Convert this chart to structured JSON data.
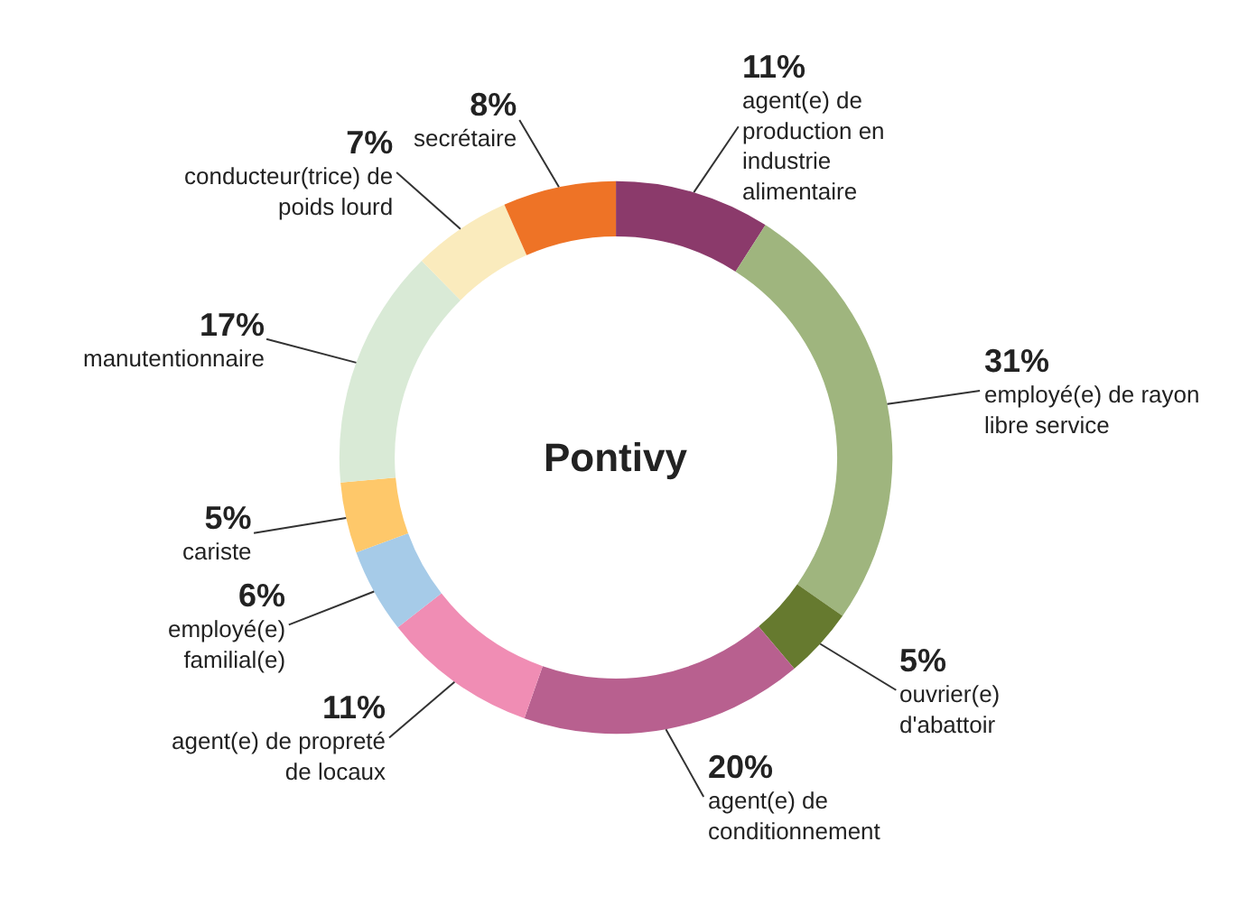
{
  "chart_data": {
    "type": "donut",
    "title": "Pontivy",
    "categories": [
      "agent(e) de production en industrie alimentaire",
      "employé(e) de rayon libre service",
      "ouvrier(e) d'abattoir",
      "agent(e) de conditionnement",
      "agent(e) de propreté de locaux",
      "employé(e) familial(e)",
      "cariste",
      "manutentionnaire",
      "conducteur(trice) de poids lourd",
      "secrétaire"
    ],
    "values": [
      11,
      31,
      5,
      20,
      11,
      6,
      5,
      17,
      7,
      8
    ],
    "value_labels": [
      "11%",
      "31%",
      "5%",
      "20%",
      "11%",
      "6%",
      "5%",
      "17%",
      "7%",
      "8%"
    ],
    "colors": [
      "#8b3a6b",
      "#9fb57e",
      "#667a2f",
      "#b8608f",
      "#f08db4",
      "#a6cbe8",
      "#fec86a",
      "#d9ead6",
      "#faebbd",
      "#ee7326"
    ],
    "legend": false
  }
}
